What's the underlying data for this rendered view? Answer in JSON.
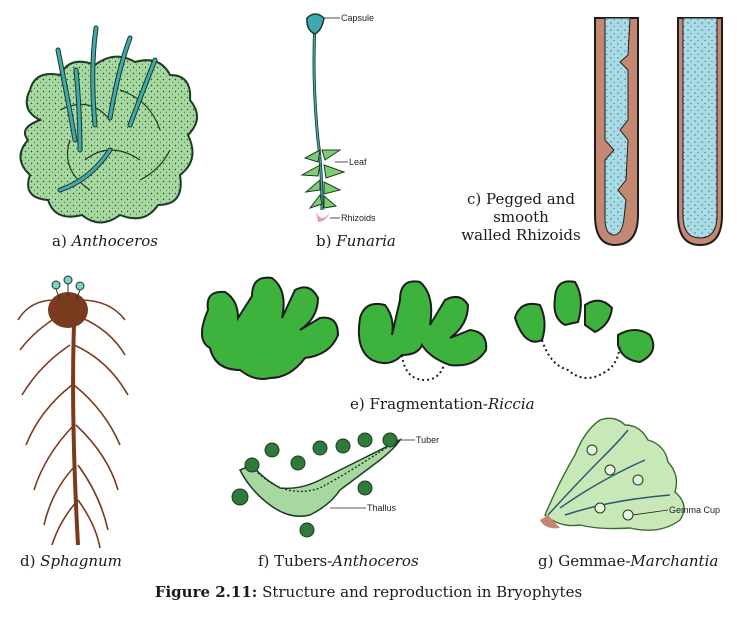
{
  "panels": {
    "a": {
      "prefix": "a) ",
      "name": "Anthoceros",
      "suffix": ""
    },
    "b": {
      "prefix": "b) ",
      "name": "Funaria",
      "suffix": "",
      "labels": {
        "capsule": "Capsule",
        "leaf": "Leaf",
        "rhizoids": "Rhizoids"
      }
    },
    "c": {
      "line1": "c) Pegged and",
      "line2": "smooth",
      "line3": "walled Rhizoids"
    },
    "d": {
      "prefix": "d) ",
      "name": "Sphagnum",
      "suffix": ""
    },
    "e": {
      "prefix": "e) Fragmentation-",
      "name": "Riccia",
      "suffix": ""
    },
    "f": {
      "prefix": "f) Tubers-",
      "name": "Anthoceros",
      "suffix": "",
      "labels": {
        "tuber": "Tuber",
        "thallus": "Thallus"
      }
    },
    "g": {
      "prefix": "g) Gemmae-",
      "name": "Marchantia",
      "suffix": "",
      "labels": {
        "gemma_cup": "Gemma Cup"
      }
    }
  },
  "figure_caption": {
    "number": "Figure 2.11:",
    "text": " Structure and reproduction in Bryophytes"
  },
  "colors": {
    "thallus_green": "#a6d8a0",
    "bright_green": "#3db23d",
    "teal": "#3fa8b0",
    "rhizoid_blue": "#a9dbe6",
    "rhizoid_brown": "#c48772",
    "sphagnum_brown": "#7a3a1e",
    "marchantia_green": "#c8e8b8"
  }
}
